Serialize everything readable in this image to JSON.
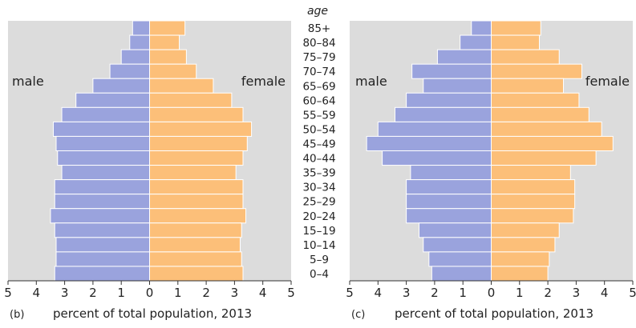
{
  "age_header": "age",
  "age_groups": [
    "85+",
    "80–84",
    "75–79",
    "70–74",
    "65–69",
    "60–64",
    "55–59",
    "50–54",
    "45–49",
    "40–44",
    "35–39",
    "30–34",
    "25–29",
    "20–24",
    "15–19",
    "10–14",
    "5–9",
    "0–4"
  ],
  "colors": {
    "male": "#9aa3dd",
    "female": "#fcbf79",
    "background": "#dcdcdc",
    "bar_edge": "#ffffff",
    "text": "#222222"
  },
  "chart_data": [
    {
      "type": "bar",
      "orientation": "horizontal",
      "panel_label": "(b)",
      "xlabel": "percent of total population, 2013",
      "xlim": [
        -5,
        5
      ],
      "xticks": [
        5,
        4,
        3,
        2,
        1,
        0,
        1,
        2,
        3,
        4,
        5
      ],
      "categories": [
        "85+",
        "80–84",
        "75–79",
        "70–74",
        "65–69",
        "60–64",
        "55–59",
        "50–54",
        "45–49",
        "40–44",
        "35–39",
        "30–34",
        "25–29",
        "20–24",
        "15–19",
        "10–14",
        "5–9",
        "0–4"
      ],
      "series": [
        {
          "name": "male",
          "values": [
            0.6,
            0.7,
            1.0,
            1.4,
            2.0,
            2.6,
            3.1,
            3.4,
            3.3,
            3.25,
            3.1,
            3.35,
            3.35,
            3.5,
            3.35,
            3.3,
            3.3,
            3.35
          ]
        },
        {
          "name": "female",
          "values": [
            1.25,
            1.05,
            1.3,
            1.65,
            2.25,
            2.9,
            3.3,
            3.6,
            3.45,
            3.3,
            3.05,
            3.3,
            3.3,
            3.4,
            3.25,
            3.2,
            3.25,
            3.3
          ]
        }
      ],
      "legend_left": "male",
      "legend_right": "female"
    },
    {
      "type": "bar",
      "orientation": "horizontal",
      "panel_label": "(c)",
      "xlabel": "percent of total population, 2013",
      "xlim": [
        -5,
        5
      ],
      "xticks": [
        5,
        4,
        3,
        2,
        1,
        0,
        1,
        2,
        3,
        4,
        5
      ],
      "categories": [
        "85+",
        "80–84",
        "75–79",
        "70–74",
        "65–69",
        "60–64",
        "55–59",
        "50–54",
        "45–49",
        "40–44",
        "35–39",
        "30–34",
        "25–29",
        "20–24",
        "15–19",
        "10–14",
        "5–9",
        "0–4"
      ],
      "series": [
        {
          "name": "male",
          "values": [
            0.7,
            1.1,
            1.9,
            2.8,
            2.4,
            3.0,
            3.4,
            4.0,
            4.4,
            3.85,
            2.85,
            3.0,
            3.0,
            3.0,
            2.55,
            2.4,
            2.2,
            2.1
          ]
        },
        {
          "name": "female",
          "values": [
            1.75,
            1.7,
            2.4,
            3.2,
            2.55,
            3.1,
            3.45,
            3.9,
            4.3,
            3.7,
            2.8,
            2.95,
            2.95,
            2.9,
            2.4,
            2.25,
            2.05,
            2.0
          ]
        }
      ],
      "legend_left": "male",
      "legend_right": "female"
    }
  ]
}
